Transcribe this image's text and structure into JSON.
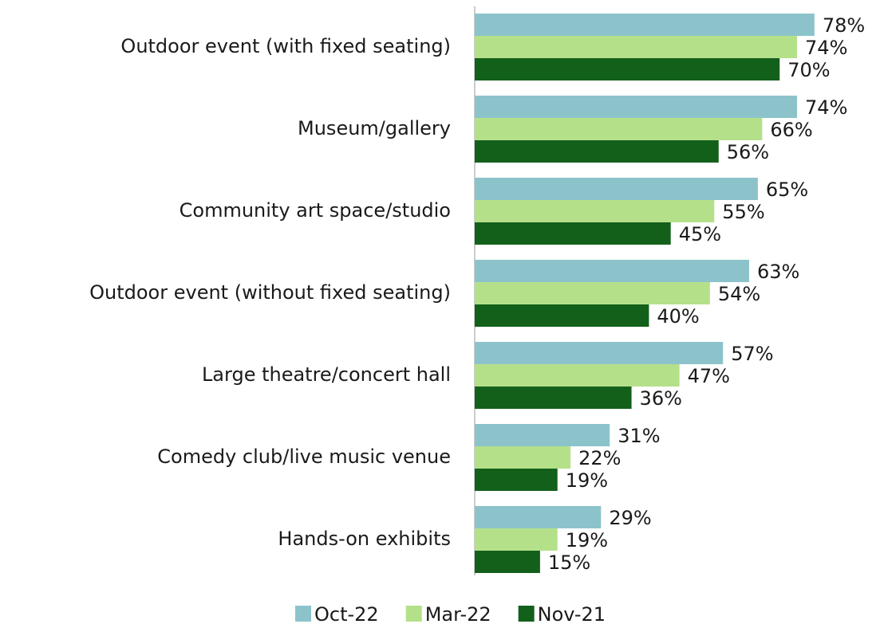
{
  "chart_data": {
    "type": "bar",
    "orientation": "horizontal",
    "categories": [
      "Outdoor event (with fixed seating)",
      "Museum/gallery",
      "Community art space/studio",
      "Outdoor event (without fixed seating)",
      "Large theatre/concert hall",
      "Comedy club/live music venue",
      "Hands-on exhibits"
    ],
    "series": [
      {
        "name": "Oct-22",
        "color": "#8cc3cb",
        "values": [
          78,
          74,
          65,
          63,
          57,
          31,
          29
        ],
        "value_labels": [
          "78%",
          "74%",
          "65%",
          "63%",
          "57%",
          "31%",
          "29%"
        ]
      },
      {
        "name": "Mar-22",
        "color": "#b5e08a",
        "values": [
          74,
          66,
          55,
          54,
          47,
          22,
          19
        ],
        "value_labels": [
          "74%",
          "66%",
          "55%",
          "54%",
          "47%",
          "22%",
          "19%"
        ]
      },
      {
        "name": "Nov-21",
        "color": "#13601b",
        "values": [
          70,
          56,
          45,
          40,
          36,
          19,
          15
        ],
        "value_labels": [
          "70%",
          "56%",
          "45%",
          "40%",
          "36%",
          "19%",
          "15%"
        ]
      }
    ],
    "xlim": [
      0,
      100
    ],
    "legend": "bottom"
  }
}
